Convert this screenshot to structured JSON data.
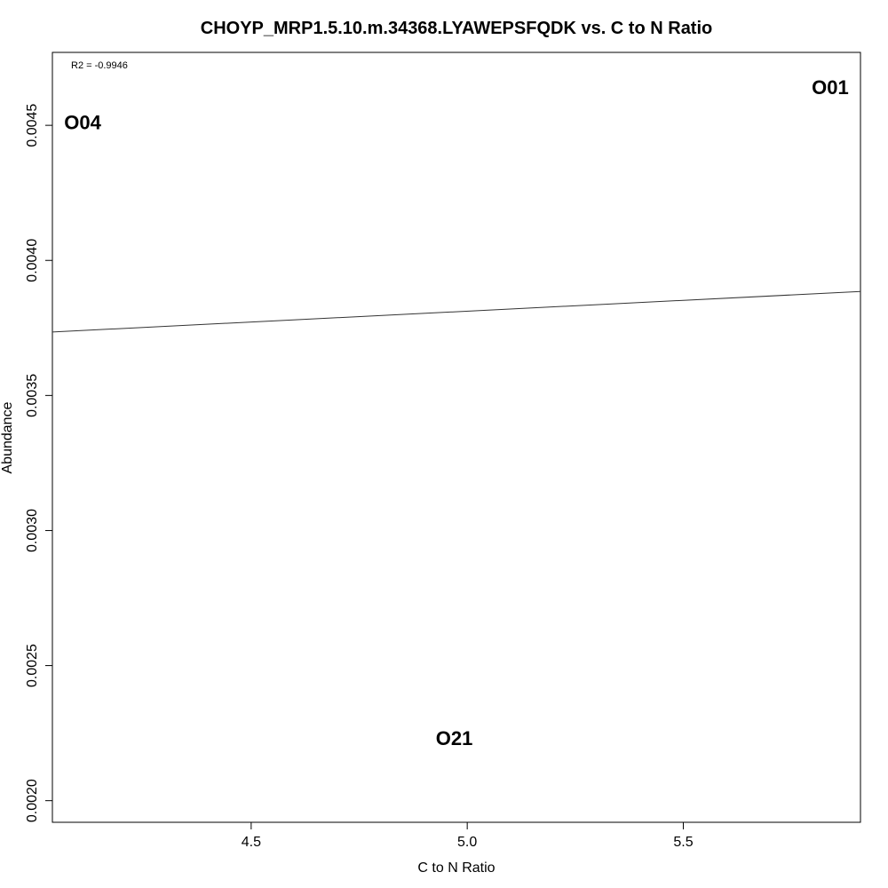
{
  "chart_data": {
    "type": "scatter",
    "title": "CHOYP_MRP1.5.10.m.34368.LYAWEPSFQDK vs. C to N Ratio",
    "xlabel": "C to N Ratio",
    "ylabel": "Abundance",
    "xlim": [
      4.04,
      5.91
    ],
    "ylim": [
      0.00192,
      0.00477
    ],
    "x_ticks": [
      4.5,
      5.0,
      5.5
    ],
    "x_tick_labels": [
      "4.5",
      "5.0",
      "5.5"
    ],
    "y_ticks": [
      0.002,
      0.0025,
      0.003,
      0.0035,
      0.004,
      0.0045
    ],
    "y_tick_labels": [
      "0.0020",
      "0.0025",
      "0.0030",
      "0.0035",
      "0.0040",
      "0.0045"
    ],
    "points": [
      {
        "label": "O04",
        "x": 4.11,
        "y": 0.00451
      },
      {
        "label": "O01",
        "x": 5.84,
        "y": 0.00464
      },
      {
        "label": "O21",
        "x": 4.97,
        "y": 0.00223
      }
    ],
    "fit_line": {
      "x": [
        4.04,
        5.91
      ],
      "y": [
        0.003735,
        0.003885
      ]
    },
    "annotation": "R2 = -0.9946",
    "grid": false,
    "legend": "none"
  }
}
